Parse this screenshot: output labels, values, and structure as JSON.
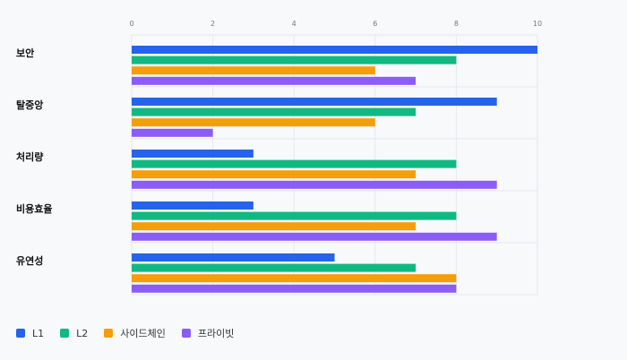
{
  "chart_data": {
    "type": "bar",
    "orientation": "horizontal",
    "categories": [
      "보안",
      "탈중앙",
      "처리량",
      "비용효율",
      "유연성"
    ],
    "series": [
      {
        "name": "L1",
        "color": "#2563eb",
        "values": [
          10,
          9,
          3,
          3,
          5
        ]
      },
      {
        "name": "L2",
        "color": "#10b981",
        "values": [
          8,
          7,
          8,
          8,
          7
        ]
      },
      {
        "name": "사이드체인",
        "color": "#f59e0b",
        "values": [
          6,
          6,
          7,
          7,
          8
        ]
      },
      {
        "name": "프라이빗",
        "color": "#8b5cf6",
        "values": [
          7,
          2,
          9,
          9,
          8
        ]
      }
    ],
    "xlim": [
      0,
      10
    ],
    "xticks": [
      "0",
      "2",
      "4",
      "6",
      "8",
      "10"
    ],
    "grid": true,
    "legend": "bottom-left"
  }
}
